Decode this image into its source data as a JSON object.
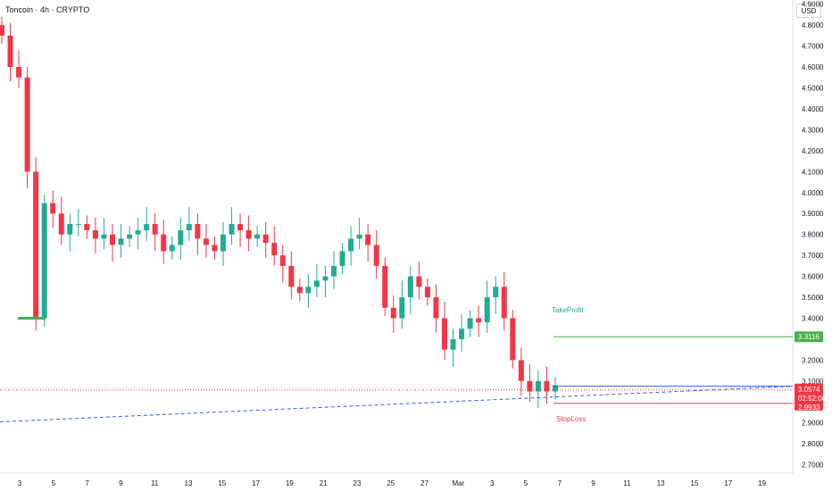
{
  "header": {
    "title": "Toncoin · 4h · CRYPTO",
    "currency": "USD"
  },
  "colors": {
    "up": "#22ab94",
    "down": "#f23645",
    "trend": "#2962ff",
    "takeprofit": "#4caf50",
    "stoploss": "#f23645",
    "entry": "#2962ff"
  },
  "chart_data": {
    "type": "candlestick",
    "symbol": "Toncoin",
    "interval": "4h",
    "exchange": "CRYPTO",
    "ylim": [
      2.66,
      4.92
    ],
    "y_ticks": [
      "4.9000",
      "4.8000",
      "4.7000",
      "4.6000",
      "4.5000",
      "4.4000",
      "4.3000",
      "4.2000",
      "4.1000",
      "4.0000",
      "3.9000",
      "3.8000",
      "3.7000",
      "3.6000",
      "3.5000",
      "3.4000",
      "3.3000",
      "3.2000",
      "3.1000",
      "3.0000",
      "2.9000",
      "2.8000",
      "2.7000"
    ],
    "x_ticks": [
      "3",
      "5",
      "7",
      "9",
      "11",
      "13",
      "15",
      "17",
      "19",
      "21",
      "23",
      "25",
      "27",
      "Mar",
      "3",
      "5",
      "7",
      "9",
      "11",
      "13",
      "15",
      "17",
      "19"
    ],
    "last_price": "3.0574",
    "countdown": "02:52:06",
    "takeprofit": {
      "label": "TakeProfit",
      "price": "3.3116"
    },
    "stoploss": {
      "label": "StopLoss",
      "price": "2.9933"
    },
    "series_close_approx": [
      4.75,
      4.6,
      4.55,
      4.1,
      3.4,
      3.95,
      3.9,
      3.8,
      3.85,
      3.85,
      3.82,
      3.78,
      3.8,
      3.75,
      3.78,
      3.8,
      3.82,
      3.85,
      3.8,
      3.72,
      3.75,
      3.82,
      3.85,
      3.78,
      3.75,
      3.72,
      3.8,
      3.85,
      3.82,
      3.78,
      3.8,
      3.76,
      3.7,
      3.65,
      3.55,
      3.52,
      3.55,
      3.58,
      3.6,
      3.65,
      3.72,
      3.78,
      3.8,
      3.75,
      3.65,
      3.45,
      3.4,
      3.5,
      3.6,
      3.55,
      3.5,
      3.4,
      3.25,
      3.3,
      3.35,
      3.4,
      3.38,
      3.5,
      3.55,
      3.4,
      3.2,
      3.1,
      3.05,
      3.1,
      3.05,
      3.08
    ]
  }
}
